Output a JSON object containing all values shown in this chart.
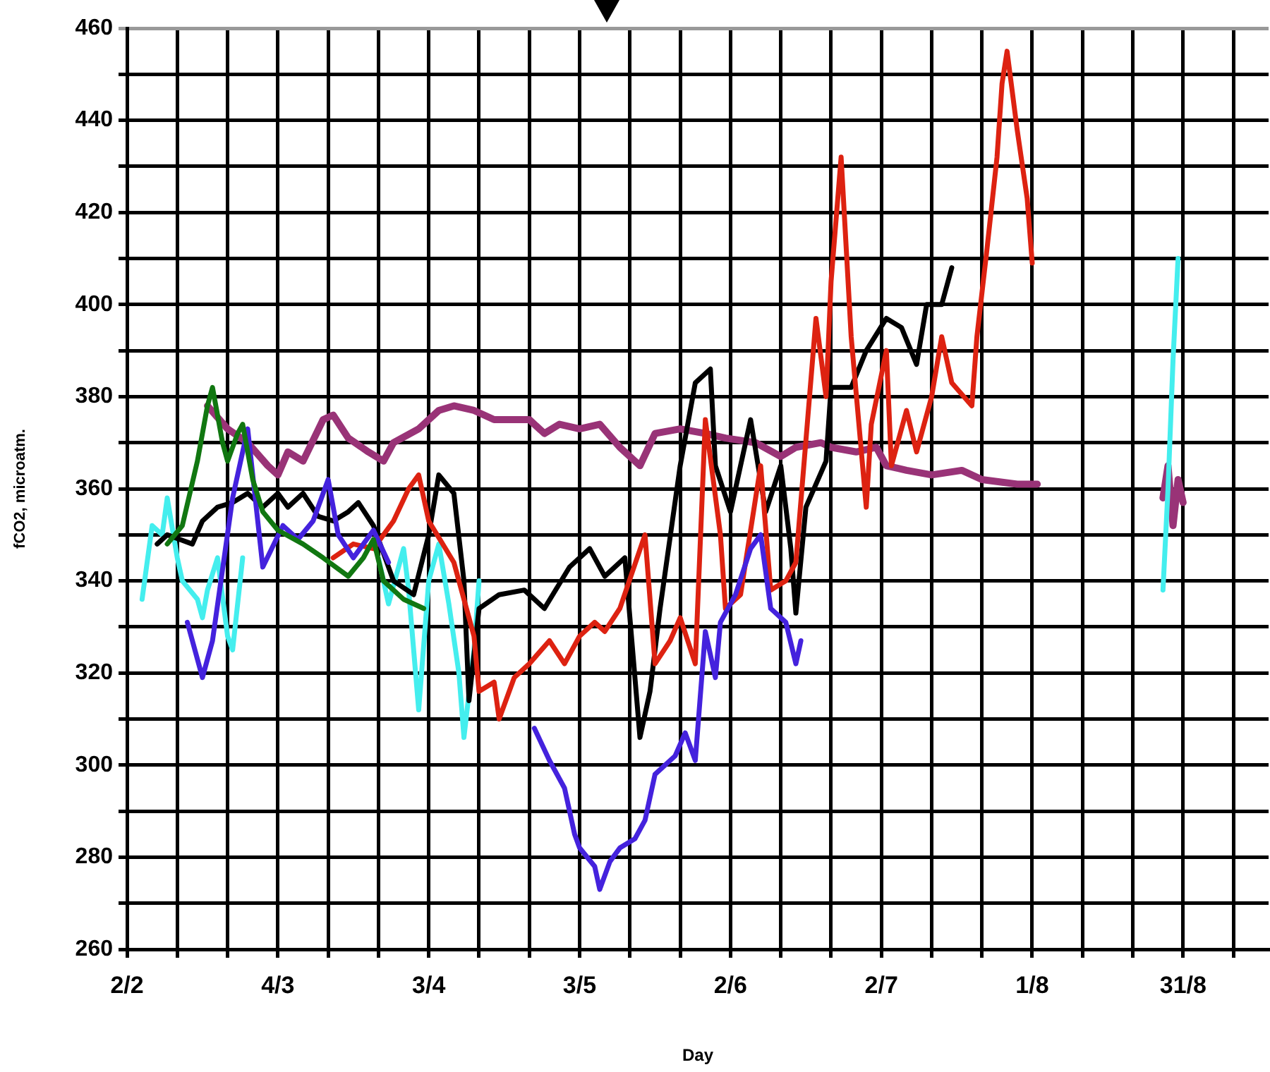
{
  "chart_data": {
    "type": "line",
    "xlabel": "Day",
    "ylabel": "fCO2, microatm.",
    "grid": true,
    "legend": false,
    "line_style": "solid",
    "xlim": [
      "--02-02",
      "--09-17"
    ],
    "xticks": [
      {
        "value": "--02-02",
        "label": "2/2"
      },
      {
        "value": "--02-12",
        "label": null
      },
      {
        "value": "--02-22",
        "label": null
      },
      {
        "value": "--03-04",
        "label": "4/3"
      },
      {
        "value": "--03-14",
        "label": null
      },
      {
        "value": "--03-24",
        "label": null
      },
      {
        "value": "--04-03",
        "label": "3/4"
      },
      {
        "value": "--04-13",
        "label": null
      },
      {
        "value": "--04-23",
        "label": null
      },
      {
        "value": "--05-03",
        "label": "3/5"
      },
      {
        "value": "--05-13",
        "label": null
      },
      {
        "value": "--05-23",
        "label": null
      },
      {
        "value": "--06-02",
        "label": "2/6"
      },
      {
        "value": "--06-12",
        "label": null
      },
      {
        "value": "--06-22",
        "label": null
      },
      {
        "value": "--07-02",
        "label": "2/7"
      },
      {
        "value": "--07-12",
        "label": null
      },
      {
        "value": "--07-22",
        "label": null
      },
      {
        "value": "--08-01",
        "label": "1/8"
      },
      {
        "value": "--08-11",
        "label": null
      },
      {
        "value": "--08-21",
        "label": null
      },
      {
        "value": "--08-31",
        "label": "31/8"
      },
      {
        "value": "--09-10",
        "label": null
      }
    ],
    "ylim": [
      260,
      460
    ],
    "yticks": [
      260,
      {
        "value": 270,
        "label": null
      },
      280,
      {
        "value": 290,
        "label": null
      },
      300,
      {
        "value": 310,
        "label": null
      },
      320,
      {
        "value": 330,
        "label": null
      },
      340,
      {
        "value": 350,
        "label": null
      },
      360,
      {
        "value": 370,
        "label": null
      },
      380,
      {
        "value": 390,
        "label": null
      },
      400,
      {
        "value": 410,
        "label": null
      },
      420,
      {
        "value": 430,
        "label": null
      },
      440,
      {
        "value": 450,
        "label": null
      },
      460
    ],
    "series": [
      {
        "color": "#117711",
        "x": [
          "--02-10",
          "--02-13",
          "--02-16",
          "--02-18",
          "--02-19",
          "--02-21",
          "--02-22",
          "--02-24",
          "--02-25",
          "--02-27",
          "--03-01",
          "--03-04",
          "--03-09",
          "--03-13",
          "--03-18",
          "--03-21",
          "--03-23",
          "--03-25",
          "--03-29",
          "--04-02"
        ],
        "values": [
          348,
          352,
          366,
          378,
          382,
          370,
          366,
          372,
          374,
          362,
          355,
          351,
          348,
          345,
          341,
          345,
          349,
          340,
          336,
          334
        ]
      },
      {
        "color": "#4422dd",
        "x": [
          "--02-14",
          "--02-17",
          "--02-19",
          "--02-23",
          "--02-26",
          "--03-01",
          "--03-05",
          "--03-08",
          "--03-11",
          "--03-14",
          "--03-16",
          "--03-19",
          "--03-23",
          "--03-26",
          "--04-10",
          "--04-24",
          "--04-27",
          "--04-30",
          "--05-02",
          "--05-03",
          "--05-06",
          "--05-07",
          "--05-09",
          "--05-11",
          "--05-14",
          "--05-16",
          "--05-18",
          "--05-22",
          "--05-24",
          "--05-26",
          "--05-28",
          "--05-30",
          "--05-31",
          "--06-03",
          "--06-06",
          "--06-08",
          "--06-10",
          "--06-13",
          "--06-15",
          "--06-16"
        ],
        "values": [
          331,
          319,
          327,
          358,
          373,
          343,
          352,
          349,
          353,
          362,
          350,
          345,
          351,
          344,
          null,
          308,
          301,
          295,
          285,
          282,
          278,
          273,
          279,
          282,
          284,
          288,
          298,
          302,
          307,
          301,
          329,
          319,
          331,
          337,
          347,
          350,
          334,
          331,
          322,
          327
        ]
      },
      {
        "color": "#dd2211",
        "x": [
          "--03-15",
          "--03-19",
          "--03-23",
          "--03-27",
          "--03-30",
          "--04-01",
          "--04-03",
          "--04-08",
          "--04-12",
          "--04-13",
          "--04-16",
          "--04-17",
          "--04-20",
          "--04-23",
          "--04-27",
          "--04-30",
          "--05-03",
          "--05-06",
          "--05-08",
          "--05-11",
          "--05-16",
          "--05-18",
          "--05-21",
          "--05-23",
          "--05-26",
          "--05-28",
          "--05-31",
          "--06-01",
          "--06-04",
          "--06-08",
          "--06-10",
          "--06-13",
          "--06-15",
          "--06-19",
          "--06-21",
          "--06-22",
          "--06-24",
          "--06-26",
          "--06-29",
          "--06-30",
          "--07-03",
          "--07-04",
          "--07-07",
          "--07-09",
          "--07-12",
          "--07-14",
          "--07-16",
          "--07-20",
          "--07-21",
          "--07-23",
          "--07-25",
          "--07-26",
          "--07-27",
          "--07-29",
          "--07-31",
          "--08-01"
        ],
        "values": [
          345,
          348,
          347,
          353,
          360,
          363,
          353,
          344,
          328,
          316,
          318,
          310,
          319,
          322,
          327,
          322,
          328,
          331,
          329,
          334,
          350,
          322,
          327,
          332,
          322,
          375,
          350,
          334,
          337,
          365,
          338,
          340,
          344,
          397,
          380,
          405,
          432,
          393,
          356,
          374,
          390,
          365,
          377,
          368,
          380,
          393,
          383,
          378,
          393,
          412,
          432,
          448,
          455,
          438,
          423,
          409
        ]
      },
      {
        "color": "#000000",
        "x": [
          "--02-08",
          "--02-10",
          "--02-15",
          "--02-17",
          "--02-20",
          "--02-23",
          "--02-26",
          "--03-01",
          "--03-04",
          "--03-06",
          "--03-09",
          "--03-12",
          "--03-15",
          "--03-18",
          "--03-20",
          "--03-23",
          "--03-27",
          "--03-31",
          "--04-03",
          "--04-05",
          "--04-08",
          "--04-10",
          "--04-11",
          "--04-13",
          "--04-17",
          "--04-22",
          "--04-26",
          "--05-01",
          "--05-05",
          "--05-08",
          "--05-12",
          "--05-15",
          "--05-17",
          "--05-19",
          "--05-23",
          "--05-26",
          "--05-29",
          "--05-30",
          "--06-02",
          "--06-06",
          "--06-09",
          "--06-12",
          "--06-14",
          "--06-15",
          "--06-17",
          "--06-21",
          "--06-22",
          "--06-26",
          "--06-29",
          "--07-03",
          "--07-06",
          "--07-09",
          "--07-11",
          "--07-14",
          "--07-16"
        ],
        "values": [
          348,
          350,
          348,
          353,
          356,
          357,
          359,
          356,
          359,
          356,
          359,
          354,
          353,
          355,
          357,
          352,
          340,
          337,
          350,
          363,
          359,
          340,
          314,
          334,
          337,
          338,
          334,
          343,
          347,
          341,
          345,
          306,
          316,
          334,
          365,
          383,
          386,
          365,
          355,
          375,
          355,
          365,
          347,
          333,
          356,
          366,
          382,
          382,
          390,
          397,
          395,
          387,
          400,
          400,
          408
        ]
      },
      {
        "color": "#44eeee",
        "x": [
          "--02-05",
          "--02-07",
          "--02-09",
          "--02-10",
          "--02-12",
          "--02-13",
          "--02-16",
          "--02-17",
          "--02-18",
          "--02-20",
          "--02-22",
          "--02-23",
          "--02-25",
          "--03-10",
          "--03-24",
          "--03-26",
          "--03-29",
          "--03-30",
          "--04-01",
          "--04-03",
          "--04-05",
          "--04-07",
          "--04-09",
          "--04-10",
          "--04-12",
          "--04-13",
          "--06-01",
          "--08-27",
          "--08-28",
          "--08-29",
          "--08-30"
        ],
        "values": [
          336,
          352,
          350,
          358,
          345,
          340,
          336,
          332,
          338,
          345,
          328,
          325,
          345,
          null,
          345,
          335,
          347,
          338,
          312,
          340,
          348,
          335,
          320,
          306,
          325,
          340,
          null,
          338,
          360,
          388,
          410
        ]
      },
      {
        "color": "#993377",
        "x": [
          "--02-18",
          "--02-22",
          "--02-26",
          "--03-02",
          "--03-04",
          "--03-06",
          "--03-09",
          "--03-13",
          "--03-15",
          "--03-18",
          "--03-22",
          "--03-25",
          "--03-27",
          "--04-01",
          "--04-05",
          "--04-08",
          "--04-12",
          "--04-16",
          "--04-23",
          "--04-26",
          "--04-29",
          "--05-03",
          "--05-07",
          "--05-11",
          "--05-15",
          "--05-18",
          "--05-23",
          "--05-28",
          "--06-01",
          "--06-07",
          "--06-12",
          "--06-15",
          "--06-20",
          "--06-22",
          "--06-27",
          "--07-01",
          "--07-03",
          "--07-07",
          "--07-12",
          "--07-18",
          "--07-22",
          "--07-29",
          "--08-02",
          "--08-15",
          "--08-27",
          "--08-28",
          "--08-29",
          "--08-30",
          "--08-31"
        ],
        "values": [
          378,
          373,
          370,
          365,
          363,
          368,
          366,
          375,
          376,
          371,
          368,
          366,
          370,
          373,
          377,
          378,
          377,
          375,
          375,
          372,
          374,
          373,
          374,
          369,
          365,
          372,
          373,
          372,
          371,
          370,
          367,
          369,
          370,
          369,
          368,
          369,
          365,
          364,
          363,
          364,
          362,
          361,
          361,
          null,
          358,
          365,
          352,
          362,
          357
        ]
      }
    ]
  }
}
